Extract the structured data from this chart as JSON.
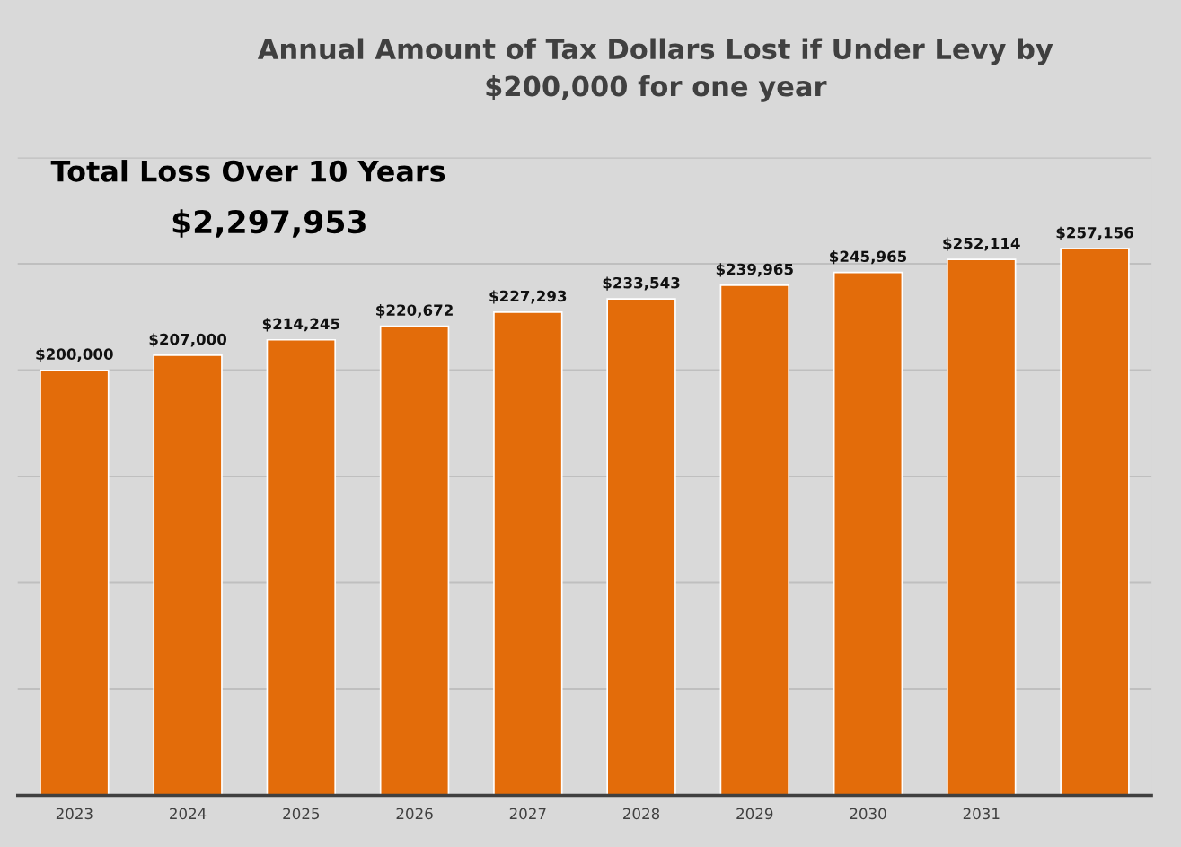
{
  "chart_data": {
    "type": "bar",
    "title": "Annual Amount of Tax Dollars Lost if Under Levy by\n$200,000 for one year",
    "categories": [
      "2023",
      "2024",
      "2025",
      "2026",
      "2027",
      "2028",
      "2029",
      "2030",
      "2031",
      null
    ],
    "values": [
      200000,
      207000,
      214245,
      220672,
      227293,
      233543,
      239965,
      245965,
      252114,
      257156
    ],
    "value_labels": [
      "$200,000",
      "$207,000",
      "$214,245",
      "$220,672",
      "$227,293",
      "$233,543",
      "$239,965",
      "$245,965",
      "$252,114",
      "$257,156"
    ],
    "color": "#e36c0a",
    "ylim": [
      0,
      300000
    ],
    "yticks": [
      {
        "value": 0,
        "label": null
      },
      {
        "value": 50000,
        "label": null
      },
      {
        "value": 100000,
        "label": null
      },
      {
        "value": 150000,
        "label": null
      },
      {
        "value": 200000,
        "label": null
      },
      {
        "value": 250000,
        "label": null
      },
      {
        "value": 300000,
        "label": null
      }
    ],
    "tick_labels": "x",
    "grid": "y",
    "annotations": [
      "Total Loss Over 10 Years",
      "$2,297,953"
    ]
  }
}
